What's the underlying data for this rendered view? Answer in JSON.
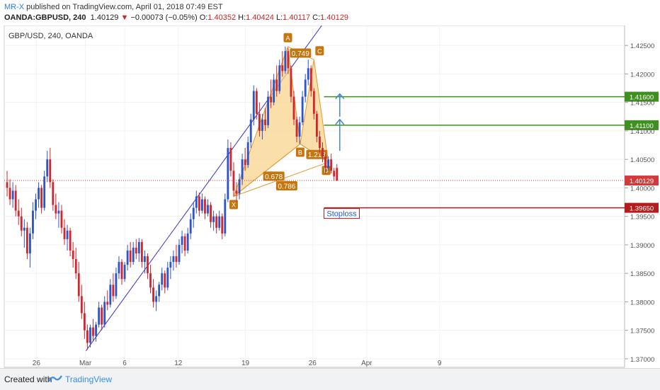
{
  "header": {
    "author": "MR-X",
    "published_text": " published on TradingView.com, April 01, 2018 07:49 EST",
    "symbol": "OANDA:GBPUSD, 240",
    "last": "1.40129",
    "change_arrow": "▼",
    "change": "−0.00073 (−0.05%)",
    "o_label": "O:",
    "o": "1.40352",
    "h_label": "H:",
    "h": "1.40424",
    "l_label": "L:",
    "l": "1.40117",
    "c_label": "C:",
    "c": "1.40129"
  },
  "footer": {
    "created_label": "Created with",
    "brand": "TradingView"
  },
  "chart_data": {
    "type": "candlestick",
    "title": "GBP/USD, 240, OANDA",
    "ylim": [
      1.3685,
      1.4285
    ],
    "y_ticks": [
      "1.37000",
      "1.37500",
      "1.38000",
      "1.38500",
      "1.39000",
      "1.39500",
      "1.40000",
      "1.40500",
      "1.41000",
      "1.41500",
      "1.42000",
      "1.42500"
    ],
    "x_ticks": [
      "26",
      "Mar",
      "6",
      "12",
      "19",
      "26",
      "Apr",
      "9"
    ],
    "x_tick_index": [
      10.2,
      27.3,
      41.0,
      59.7,
      83.1,
      106.5,
      125.4,
      150.8
    ],
    "n_bars": 161,
    "colors": {
      "up": "#2e55c8",
      "down": "#d0262f",
      "pattern_fill": "#f9d48f",
      "pattern_line": "#e09a2f",
      "trend": "#3b30c8",
      "target": "#3f8f21",
      "stop": "#b71c1c",
      "price_line": "#d23b3b",
      "arrow": "#3f87d8"
    },
    "trendline": [
      [
        27.5,
        1.3714
      ],
      [
        91.0,
        1.4155
      ]
    ],
    "price_line": {
      "value": 1.40129,
      "label": "1.40129"
    },
    "levels": [
      {
        "value": 1.416,
        "label": "1.41600",
        "type": "target",
        "from_index": 110.5
      },
      {
        "value": 1.411,
        "label": "1.41100",
        "type": "target",
        "from_index": 110.5
      },
      {
        "value": 1.3965,
        "label": "1.39650",
        "type": "stop",
        "from_index": 110.5
      }
    ],
    "stop_label": "Stoploss",
    "arrows": [
      {
        "x_index": 116,
        "from": 1.4065,
        "to": 1.412
      },
      {
        "x_index": 116,
        "from": 1.4125,
        "to": 1.4165
      }
    ],
    "pattern": {
      "points": [
        {
          "name": "X",
          "i": 79.0,
          "price": 1.3985
        },
        {
          "name": "A",
          "i": 97.9,
          "price": 1.4248
        },
        {
          "name": "B",
          "i": 102.2,
          "price": 1.4077
        },
        {
          "name": "C",
          "i": 107.0,
          "price": 1.4225
        },
        {
          "name": "D",
          "i": 112.0,
          "price": 1.4045
        }
      ],
      "ratios": [
        {
          "label": "0.749",
          "i": 102.3,
          "price": 1.4236
        },
        {
          "label": "1.213",
          "i": 108.0,
          "price": 1.4058
        },
        {
          "label": "0.678",
          "i": 93.0,
          "price": 1.402
        },
        {
          "label": "0.786",
          "i": 97.5,
          "price": 1.4003
        }
      ]
    },
    "ohlc": [
      [
        1.401,
        1.403,
        1.3985,
        1.4
      ],
      [
        1.4,
        1.4015,
        1.397,
        1.398
      ],
      [
        1.398,
        1.401,
        1.3965,
        1.3995
      ],
      [
        1.3995,
        1.4005,
        1.395,
        1.396
      ],
      [
        1.396,
        1.398,
        1.3935,
        1.395
      ],
      [
        1.395,
        1.3965,
        1.3915,
        1.3925
      ],
      [
        1.3925,
        1.3945,
        1.3895,
        1.393
      ],
      [
        1.393,
        1.394,
        1.3875,
        1.3885
      ],
      [
        1.3885,
        1.393,
        1.386,
        1.392
      ],
      [
        1.392,
        1.3975,
        1.391,
        1.396
      ],
      [
        1.396,
        1.399,
        1.3945,
        1.398
      ],
      [
        1.398,
        1.401,
        1.3965,
        1.4
      ],
      [
        1.4,
        1.4005,
        1.3955,
        1.3965
      ],
      [
        1.3965,
        1.403,
        1.396,
        1.402
      ],
      [
        1.402,
        1.4065,
        1.401,
        1.405
      ],
      [
        1.405,
        1.407,
        1.4,
        1.401
      ],
      [
        1.401,
        1.4015,
        1.396,
        1.397
      ],
      [
        1.397,
        1.399,
        1.3945,
        1.3955
      ],
      [
        1.3955,
        1.3975,
        1.393,
        1.396
      ],
      [
        1.396,
        1.397,
        1.392,
        1.393
      ],
      [
        1.393,
        1.3945,
        1.39,
        1.391
      ],
      [
        1.391,
        1.3935,
        1.389,
        1.3925
      ],
      [
        1.3925,
        1.393,
        1.388,
        1.389
      ],
      [
        1.389,
        1.3905,
        1.386,
        1.3875
      ],
      [
        1.3875,
        1.3895,
        1.384,
        1.385
      ],
      [
        1.385,
        1.387,
        1.38,
        1.381
      ],
      [
        1.381,
        1.383,
        1.377,
        1.378
      ],
      [
        1.378,
        1.38,
        1.3735,
        1.375
      ],
      [
        1.375,
        1.376,
        1.3716,
        1.3728
      ],
      [
        1.3728,
        1.376,
        1.372,
        1.3755
      ],
      [
        1.3755,
        1.377,
        1.373,
        1.374
      ],
      [
        1.374,
        1.3765,
        1.373,
        1.376
      ],
      [
        1.376,
        1.38,
        1.3755,
        1.379
      ],
      [
        1.379,
        1.3795,
        1.375,
        1.376
      ],
      [
        1.376,
        1.381,
        1.3755,
        1.38
      ],
      [
        1.38,
        1.382,
        1.3785,
        1.3795
      ],
      [
        1.3795,
        1.384,
        1.379,
        1.383
      ],
      [
        1.383,
        1.385,
        1.38,
        1.381
      ],
      [
        1.381,
        1.386,
        1.3805,
        1.385
      ],
      [
        1.385,
        1.388,
        1.384,
        1.387
      ],
      [
        1.387,
        1.3875,
        1.383,
        1.384
      ],
      [
        1.384,
        1.387,
        1.3835,
        1.3865
      ],
      [
        1.3865,
        1.39,
        1.3855,
        1.389
      ],
      [
        1.389,
        1.3905,
        1.386,
        1.387
      ],
      [
        1.387,
        1.3905,
        1.3865,
        1.3895
      ],
      [
        1.3895,
        1.391,
        1.3875,
        1.3885
      ],
      [
        1.3885,
        1.3912,
        1.387,
        1.3905
      ],
      [
        1.3905,
        1.391,
        1.386,
        1.387
      ],
      [
        1.387,
        1.389,
        1.385,
        1.388
      ],
      [
        1.388,
        1.3885,
        1.384,
        1.385
      ],
      [
        1.385,
        1.3865,
        1.3815,
        1.3825
      ],
      [
        1.3825,
        1.384,
        1.379,
        1.38
      ],
      [
        1.38,
        1.382,
        1.3784,
        1.381
      ],
      [
        1.381,
        1.3835,
        1.38,
        1.383
      ],
      [
        1.383,
        1.386,
        1.382,
        1.385
      ],
      [
        1.385,
        1.3855,
        1.3815,
        1.3825
      ],
      [
        1.3825,
        1.387,
        1.382,
        1.386
      ],
      [
        1.386,
        1.388,
        1.384,
        1.387
      ],
      [
        1.387,
        1.389,
        1.3855,
        1.388
      ],
      [
        1.388,
        1.39,
        1.386,
        1.387
      ],
      [
        1.387,
        1.391,
        1.3865,
        1.39
      ],
      [
        1.39,
        1.3925,
        1.3885,
        1.3915
      ],
      [
        1.3915,
        1.392,
        1.388,
        1.389
      ],
      [
        1.389,
        1.393,
        1.3885,
        1.392
      ],
      [
        1.392,
        1.3955,
        1.391,
        1.3945
      ],
      [
        1.3945,
        1.3975,
        1.393,
        1.3965
      ],
      [
        1.3965,
        1.3995,
        1.3955,
        1.3985
      ],
      [
        1.3985,
        1.3992,
        1.395,
        1.396
      ],
      [
        1.396,
        1.399,
        1.3955,
        1.398
      ],
      [
        1.398,
        1.3985,
        1.3945,
        1.3955
      ],
      [
        1.3955,
        1.398,
        1.395,
        1.397
      ],
      [
        1.397,
        1.3975,
        1.393,
        1.394
      ],
      [
        1.394,
        1.396,
        1.3925,
        1.395
      ],
      [
        1.395,
        1.3955,
        1.392,
        1.393
      ],
      [
        1.393,
        1.396,
        1.3925,
        1.395
      ],
      [
        1.395,
        1.3955,
        1.391,
        1.392
      ],
      [
        1.392,
        1.399,
        1.3915,
        1.398
      ],
      [
        1.398,
        1.4085,
        1.3975,
        1.407
      ],
      [
        1.407,
        1.408,
        1.402,
        1.403
      ],
      [
        1.403,
        1.4045,
        1.3985,
        1.3995
      ],
      [
        1.3995,
        1.401,
        1.3975,
        1.399
      ],
      [
        1.399,
        1.4025,
        1.398,
        1.4015
      ],
      [
        1.4015,
        1.406,
        1.4005,
        1.405
      ],
      [
        1.405,
        1.407,
        1.403,
        1.404
      ],
      [
        1.404,
        1.409,
        1.4035,
        1.408
      ],
      [
        1.408,
        1.413,
        1.407,
        1.412
      ],
      [
        1.412,
        1.418,
        1.411,
        1.417
      ],
      [
        1.417,
        1.4175,
        1.412,
        1.413
      ],
      [
        1.413,
        1.415,
        1.409,
        1.41
      ],
      [
        1.41,
        1.413,
        1.4085,
        1.412
      ],
      [
        1.412,
        1.414,
        1.41,
        1.411
      ],
      [
        1.411,
        1.417,
        1.4105,
        1.416
      ],
      [
        1.416,
        1.419,
        1.414,
        1.415
      ],
      [
        1.415,
        1.42,
        1.4145,
        1.419
      ],
      [
        1.419,
        1.4215,
        1.416,
        1.417
      ],
      [
        1.417,
        1.4225,
        1.4165,
        1.4215
      ],
      [
        1.4215,
        1.424,
        1.4195,
        1.4205
      ],
      [
        1.4205,
        1.4248,
        1.42,
        1.424
      ],
      [
        1.424,
        1.4245,
        1.42,
        1.421
      ],
      [
        1.421,
        1.4215,
        1.415,
        1.416
      ],
      [
        1.416,
        1.417,
        1.411,
        1.412
      ],
      [
        1.412,
        1.4125,
        1.408,
        1.409
      ],
      [
        1.409,
        1.4125,
        1.4077,
        1.4115
      ],
      [
        1.4115,
        1.417,
        1.411,
        1.416
      ],
      [
        1.416,
        1.42,
        1.415,
        1.419
      ],
      [
        1.419,
        1.4225,
        1.418,
        1.421
      ],
      [
        1.421,
        1.4215,
        1.416,
        1.417
      ],
      [
        1.417,
        1.4175,
        1.412,
        1.413
      ],
      [
        1.413,
        1.4135,
        1.408,
        1.409
      ],
      [
        1.409,
        1.41,
        1.406,
        1.407
      ],
      [
        1.407,
        1.408,
        1.4045,
        1.4055
      ],
      [
        1.4055,
        1.406,
        1.4025,
        1.4035
      ],
      [
        1.4035,
        1.4055,
        1.403,
        1.405
      ],
      [
        1.405,
        1.406,
        1.4025,
        1.403
      ],
      [
        1.403,
        1.4035,
        1.4012,
        1.402
      ],
      [
        1.4035,
        1.4042,
        1.4012,
        1.4013
      ]
    ]
  }
}
